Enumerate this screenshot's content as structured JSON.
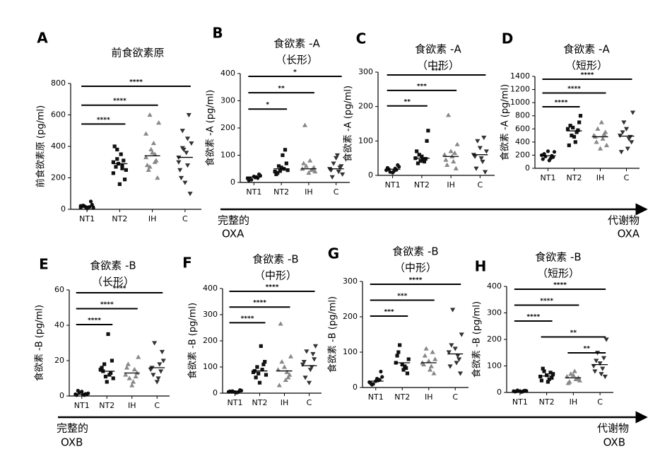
{
  "chart_data": [
    {
      "type": "scatter",
      "panel": "A",
      "title": [
        "前食欲素原"
      ],
      "ylabel": "前食欲素原 (pg/ml)",
      "ylim": [
        0,
        800
      ],
      "yticks": [
        0,
        200,
        400,
        600,
        800
      ],
      "categories": [
        "NT1",
        "NT2",
        "IH",
        "C"
      ],
      "series": [
        {
          "name": "NT1",
          "color": "#111111",
          "marker": "circle",
          "mean": 20,
          "values": [
            10,
            15,
            20,
            8,
            12,
            25,
            30,
            5,
            18,
            50,
            14,
            22
          ]
        },
        {
          "name": "NT2",
          "color": "#111111",
          "marker": "square",
          "mean": 290,
          "values": [
            300,
            280,
            320,
            250,
            350,
            270,
            190,
            160,
            400,
            310,
            290,
            230,
            260,
            380
          ]
        },
        {
          "name": "IH",
          "color": "#888888",
          "marker": "triangle",
          "mean": 340,
          "values": [
            330,
            300,
            600,
            550,
            420,
            250,
            200,
            360,
            280,
            310,
            380,
            480,
            350,
            270
          ]
        },
        {
          "name": "C",
          "color": "#333333",
          "marker": "triangle-down",
          "mean": 330,
          "values": [
            330,
            280,
            500,
            420,
            360,
            200,
            100,
            170,
            250,
            600,
            380,
            300,
            450,
            390
          ]
        }
      ],
      "comparisons": [
        {
          "label": "****",
          "groups": [
            "NT1",
            "C"
          ]
        },
        {
          "label": "****",
          "groups": [
            "NT1",
            "IH"
          ]
        },
        {
          "label": "****",
          "groups": [
            "NT1",
            "NT2"
          ]
        }
      ]
    },
    {
      "type": "scatter",
      "panel": "B",
      "title": [
        "食欲素 -A",
        "（长形）"
      ],
      "ylabel": "食欲素 -A (pg/ml)",
      "ylim": [
        0,
        400
      ],
      "yticks": [
        0,
        100,
        200,
        300,
        400
      ],
      "categories": [
        "NT1",
        "NT2",
        "IH",
        "C"
      ],
      "series": [
        {
          "name": "NT1",
          "color": "#111111",
          "marker": "circle",
          "mean": 20,
          "values": [
            15,
            20,
            10,
            25,
            18,
            12,
            30,
            22,
            8,
            16
          ]
        },
        {
          "name": "NT2",
          "color": "#111111",
          "marker": "square",
          "mean": 50,
          "values": [
            40,
            50,
            60,
            45,
            100,
            35,
            70,
            55,
            30,
            120,
            42
          ]
        },
        {
          "name": "IH",
          "color": "#888888",
          "marker": "triangle",
          "mean": 50,
          "values": [
            50,
            45,
            60,
            40,
            80,
            210,
            55,
            35,
            70,
            48
          ]
        },
        {
          "name": "C",
          "color": "#333333",
          "marker": "triangle-down",
          "mean": 50,
          "values": [
            50,
            40,
            70,
            30,
            100,
            20,
            60,
            90,
            45,
            55
          ]
        }
      ],
      "comparisons": [
        {
          "label": "*",
          "groups": [
            "NT1",
            "C"
          ]
        },
        {
          "label": "**",
          "groups": [
            "NT1",
            "IH"
          ]
        },
        {
          "label": "*",
          "groups": [
            "NT1",
            "NT2"
          ]
        }
      ]
    },
    {
      "type": "scatter",
      "panel": "C",
      "title": [
        "食欲素 -A",
        "（中形）"
      ],
      "ylabel": "食欲素 -A (pg/ml)",
      "ylim": [
        0,
        300
      ],
      "yticks": [
        0,
        100,
        200,
        300
      ],
      "categories": [
        "NT1",
        "NT2",
        "IH",
        "C"
      ],
      "series": [
        {
          "name": "NT1",
          "color": "#111111",
          "marker": "circle",
          "mean": 18,
          "values": [
            15,
            20,
            10,
            25,
            12,
            18,
            30,
            8,
            22,
            16
          ]
        },
        {
          "name": "NT2",
          "color": "#111111",
          "marker": "square",
          "mean": 50,
          "values": [
            50,
            40,
            60,
            130,
            45,
            35,
            100,
            55,
            70,
            48,
            42
          ]
        },
        {
          "name": "IH",
          "color": "#888888",
          "marker": "triangle",
          "mean": 55,
          "values": [
            60,
            40,
            175,
            90,
            55,
            30,
            20,
            70,
            45,
            65
          ]
        },
        {
          "name": "C",
          "color": "#333333",
          "marker": "triangle-down",
          "mean": 60,
          "values": [
            60,
            40,
            100,
            70,
            50,
            20,
            10,
            80,
            55,
            110
          ]
        }
      ],
      "comparisons": [
        {
          "label": "***",
          "groups": [
            "NT1",
            "C"
          ]
        },
        {
          "label": "***",
          "groups": [
            "NT1",
            "IH"
          ]
        },
        {
          "label": "**",
          "groups": [
            "NT1",
            "NT2"
          ]
        }
      ]
    },
    {
      "type": "scatter",
      "panel": "D",
      "title": [
        "食欲素 -A",
        "（短形）"
      ],
      "ylabel": "食欲素 -A (pg/ml)",
      "ylim": [
        0,
        1400
      ],
      "yticks": [
        0,
        200,
        400,
        600,
        800,
        1000,
        1200,
        1400
      ],
      "categories": [
        "NT1",
        "NT2",
        "IH",
        "C"
      ],
      "series": [
        {
          "name": "NT1",
          "color": "#111111",
          "marker": "circle",
          "mean": 190,
          "values": [
            200,
            150,
            180,
            250,
            120,
            220,
            170,
            260,
            140,
            190
          ]
        },
        {
          "name": "NT2",
          "color": "#111111",
          "marker": "square",
          "mean": 570,
          "values": [
            600,
            550,
            500,
            800,
            400,
            650,
            700,
            480,
            350,
            580,
            620
          ]
        },
        {
          "name": "IH",
          "color": "#888888",
          "marker": "triangle",
          "mean": 480,
          "values": [
            500,
            450,
            600,
            350,
            700,
            400,
            550,
            300,
            480,
            520
          ]
        },
        {
          "name": "C",
          "color": "#333333",
          "marker": "triangle-down",
          "mean": 490,
          "values": [
            500,
            450,
            700,
            850,
            300,
            550,
            400,
            600,
            250,
            480
          ]
        }
      ],
      "comparisons": [
        {
          "label": "****",
          "groups": [
            "NT1",
            "C"
          ]
        },
        {
          "label": "****",
          "groups": [
            "NT1",
            "IH"
          ]
        },
        {
          "label": "****",
          "groups": [
            "NT1",
            "NT2"
          ]
        }
      ]
    },
    {
      "type": "scatter",
      "panel": "E",
      "title": [
        "食欲素 -B",
        "（长形）"
      ],
      "ylabel": "食欲素 -B (pg/ml)",
      "ylim": [
        0,
        60
      ],
      "yticks": [
        0,
        20,
        40,
        60
      ],
      "categories": [
        "NT1",
        "NT2",
        "IH",
        "C"
      ],
      "series": [
        {
          "name": "NT1",
          "color": "#111111",
          "marker": "circle",
          "mean": 1,
          "values": [
            1,
            0.5,
            2,
            1.5,
            0.8,
            3,
            1,
            2.5,
            0.5,
            1.2
          ]
        },
        {
          "name": "NT2",
          "color": "#111111",
          "marker": "square",
          "mean": 14,
          "values": [
            15,
            12,
            18,
            10,
            35,
            14,
            20,
            8,
            16,
            13,
            11
          ]
        },
        {
          "name": "IH",
          "color": "#888888",
          "marker": "triangle",
          "mean": 13,
          "values": [
            12,
            15,
            10,
            22,
            8,
            18,
            13,
            6,
            16,
            11
          ]
        },
        {
          "name": "C",
          "color": "#333333",
          "marker": "triangle-down",
          "mean": 16,
          "values": [
            15,
            18,
            30,
            20,
            10,
            12,
            25,
            8,
            16,
            14
          ]
        }
      ],
      "comparisons": [
        {
          "label": "****",
          "groups": [
            "NT1",
            "C"
          ]
        },
        {
          "label": "****",
          "groups": [
            "NT1",
            "IH"
          ]
        },
        {
          "label": "****",
          "groups": [
            "NT1",
            "NT2"
          ]
        }
      ]
    },
    {
      "type": "scatter",
      "panel": "F",
      "title": [
        "食欲素 -B",
        "（中形）"
      ],
      "ylabel": "食欲素 -B (pg/ml)",
      "ylim": [
        0,
        400
      ],
      "yticks": [
        0,
        100,
        200,
        300,
        400
      ],
      "categories": [
        "NT1",
        "NT2",
        "IH",
        "C"
      ],
      "series": [
        {
          "name": "NT1",
          "color": "#111111",
          "marker": "circle",
          "mean": 6,
          "values": [
            5,
            3,
            8,
            10,
            2,
            6,
            12,
            4,
            7,
            5
          ]
        },
        {
          "name": "NT2",
          "color": "#111111",
          "marker": "square",
          "mean": 85,
          "values": [
            80,
            90,
            100,
            70,
            180,
            60,
            120,
            40,
            85,
            110,
            75
          ]
        },
        {
          "name": "IH",
          "color": "#888888",
          "marker": "triangle",
          "mean": 85,
          "values": [
            90,
            80,
            120,
            140,
            50,
            265,
            70,
            100,
            30,
            60
          ]
        },
        {
          "name": "C",
          "color": "#333333",
          "marker": "triangle-down",
          "mean": 105,
          "values": [
            110,
            100,
            160,
            180,
            90,
            60,
            130,
            40,
            120,
            150
          ]
        }
      ],
      "comparisons": [
        {
          "label": "****",
          "groups": [
            "NT1",
            "C"
          ]
        },
        {
          "label": "****",
          "groups": [
            "NT1",
            "IH"
          ]
        },
        {
          "label": "****",
          "groups": [
            "NT1",
            "NT2"
          ]
        }
      ]
    },
    {
      "type": "scatter",
      "panel": "G",
      "title": [
        "食欲素 -B",
        "（中形）"
      ],
      "ylabel": "食欲素 -B (pg/ml)",
      "ylim": [
        0,
        300
      ],
      "yticks": [
        0,
        100,
        200,
        300
      ],
      "categories": [
        "NT1",
        "NT2",
        "IH",
        "C"
      ],
      "series": [
        {
          "name": "NT1",
          "color": "#111111",
          "marker": "circle",
          "mean": 18,
          "values": [
            15,
            20,
            10,
            30,
            25,
            8,
            45,
            18,
            12,
            22
          ]
        },
        {
          "name": "NT2",
          "color": "#111111",
          "marker": "square",
          "mean": 70,
          "values": [
            70,
            60,
            120,
            80,
            50,
            100,
            40,
            65,
            90,
            55
          ]
        },
        {
          "name": "IH",
          "color": "#888888",
          "marker": "triangle",
          "mean": 70,
          "values": [
            70,
            60,
            110,
            80,
            50,
            90,
            40,
            75,
            65,
            100
          ]
        },
        {
          "name": "C",
          "color": "#333333",
          "marker": "triangle-down",
          "mean": 95,
          "values": [
            100,
            90,
            220,
            150,
            70,
            120,
            40,
            110,
            60,
            80
          ]
        }
      ],
      "comparisons": [
        {
          "label": "****",
          "groups": [
            "NT1",
            "C"
          ]
        },
        {
          "label": "***",
          "groups": [
            "NT1",
            "IH"
          ]
        },
        {
          "label": "***",
          "groups": [
            "NT1",
            "NT2"
          ]
        }
      ]
    },
    {
      "type": "scatter",
      "panel": "H",
      "title": [
        "食欲素 -B",
        "（短形）"
      ],
      "ylabel": "食欲素 -B (pg/ml)",
      "ylim": [
        0,
        400
      ],
      "yticks": [
        0,
        100,
        200,
        300,
        400
      ],
      "categories": [
        "NT1",
        "NT2",
        "IH",
        "C"
      ],
      "series": [
        {
          "name": "NT1",
          "color": "#111111",
          "marker": "circle",
          "mean": 5,
          "values": [
            5,
            3,
            8,
            6,
            2,
            4,
            7,
            5,
            3,
            6
          ]
        },
        {
          "name": "NT2",
          "color": "#111111",
          "marker": "square",
          "mean": 62,
          "values": [
            60,
            50,
            80,
            70,
            40,
            90,
            55,
            65,
            45,
            75
          ]
        },
        {
          "name": "IH",
          "color": "#888888",
          "marker": "triangle",
          "mean": 55,
          "values": [
            60,
            50,
            70,
            45,
            80,
            40,
            55,
            65,
            35,
            50
          ]
        },
        {
          "name": "C",
          "color": "#333333",
          "marker": "triangle-down",
          "mean": 105,
          "values": [
            100,
            90,
            150,
            200,
            70,
            120,
            60,
            110,
            80,
            130
          ]
        }
      ],
      "comparisons": [
        {
          "label": "****",
          "groups": [
            "NT1",
            "C"
          ]
        },
        {
          "label": "****",
          "groups": [
            "NT1",
            "IH"
          ]
        },
        {
          "label": "****",
          "groups": [
            "NT1",
            "NT2"
          ]
        },
        {
          "label": "**",
          "groups": [
            "NT2",
            "C"
          ]
        },
        {
          "label": "**",
          "groups": [
            "IH",
            "C"
          ]
        }
      ]
    }
  ],
  "arrows": [
    {
      "left": [
        "完整的",
        "OXA"
      ],
      "right": [
        "代谢物",
        "OXA"
      ]
    },
    {
      "left": [
        "完整的",
        "OXB"
      ],
      "right": [
        "代谢物",
        "OXB"
      ]
    }
  ]
}
